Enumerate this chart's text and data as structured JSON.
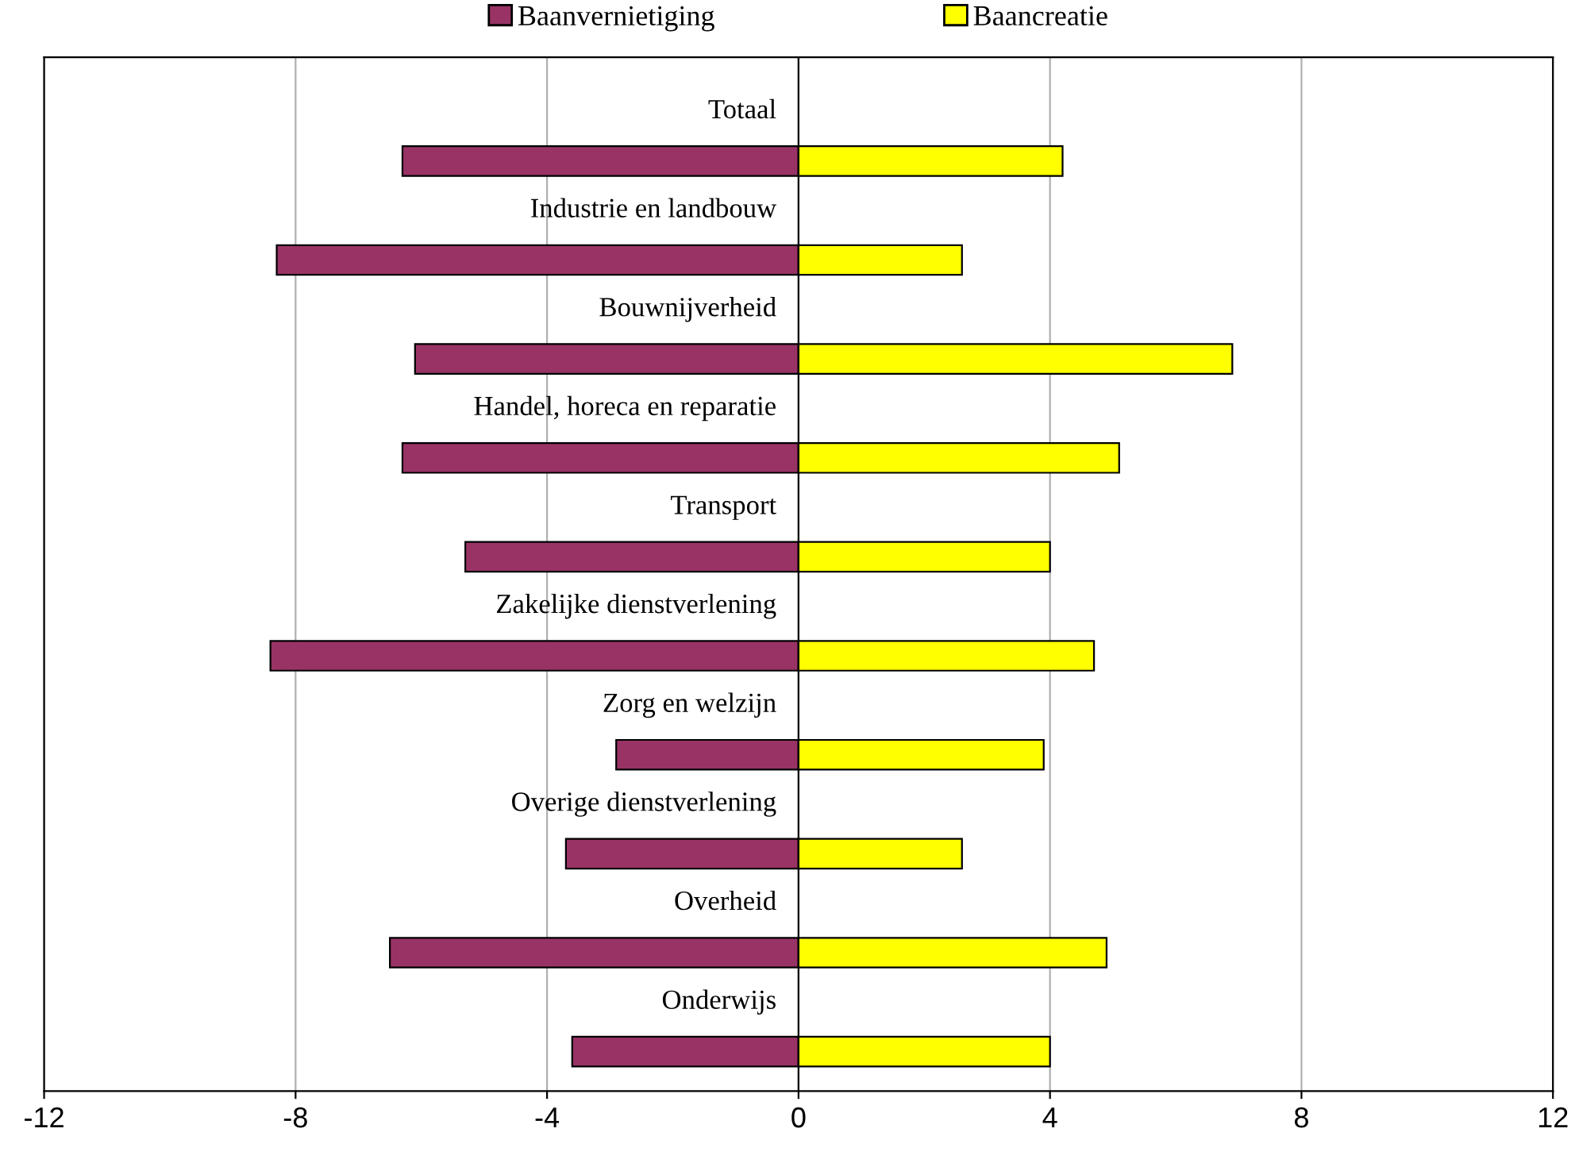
{
  "chart_data": {
    "type": "bar",
    "orientation": "horizontal",
    "stacked": true,
    "categories": [
      "Totaal",
      "Industrie en landbouw",
      "Bouwnijverheid",
      "Handel, horeca en reparatie",
      "Transport",
      "Zakelijke dienstverlening",
      "Zorg en welzijn",
      "Overige dienstverlening",
      "Overheid",
      "Onderwijs"
    ],
    "series": [
      {
        "name": "Baanvernietiging",
        "color": "#993366",
        "values": [
          -6.3,
          -8.3,
          -6.1,
          -6.3,
          -5.3,
          -8.4,
          -2.9,
          -3.7,
          -6.5,
          -3.6
        ]
      },
      {
        "name": "Baancreatie",
        "color": "#ffff00",
        "values": [
          4.2,
          2.6,
          6.9,
          5.1,
          4.0,
          4.7,
          3.9,
          2.6,
          4.9,
          4.0
        ]
      }
    ],
    "xlim": [
      -12,
      12
    ],
    "xticks": [
      -12,
      -8,
      -4,
      0,
      4,
      8,
      12
    ],
    "grid": "x",
    "legend": "top"
  }
}
